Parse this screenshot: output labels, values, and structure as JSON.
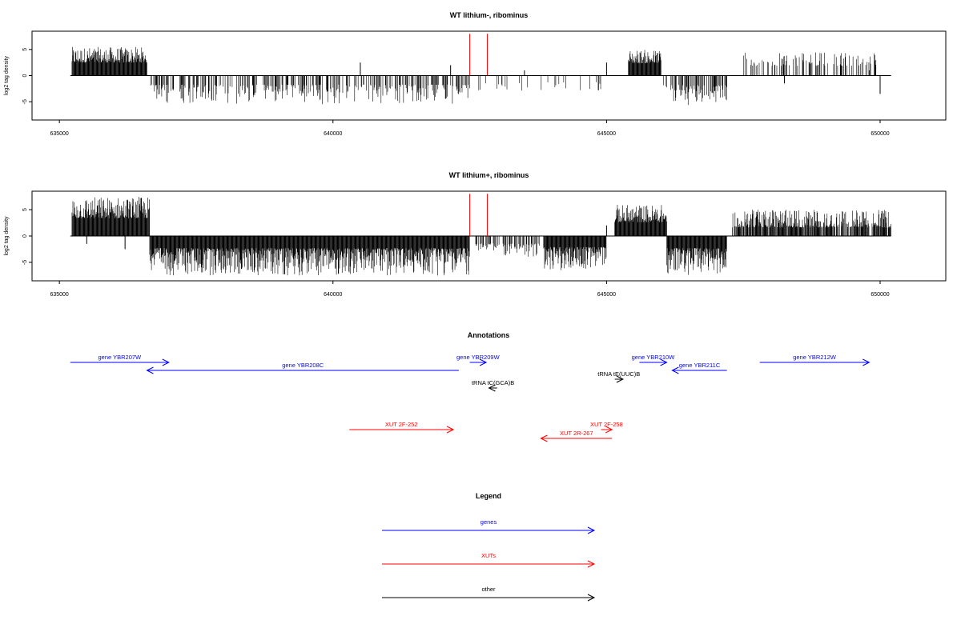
{
  "chart_data": [
    {
      "type": "bar",
      "title": "WT lithium-, ribominus",
      "xlabel": "",
      "ylabel": "log2 tag density",
      "xlim": [
        634500,
        651200
      ],
      "ylim": [
        -8.5,
        8.5
      ],
      "xticks": [
        "635000",
        "640000",
        "645000",
        "650000"
      ],
      "yticks": [
        "5",
        "0",
        "-5"
      ],
      "baseline": [
        635200,
        650200
      ],
      "series": [
        {
          "color": "#000000",
          "segments": [
            {
              "from": 635230,
              "to": 636600,
              "min": 1.5,
              "max": 5.5
            },
            {
              "from": 636620,
              "to": 642500,
              "min": -5.5,
              "max": -0.8,
              "density": 0.38
            },
            {
              "from": 642600,
              "to": 643500,
              "min": -4.0,
              "max": -0.8,
              "density": 0.15
            },
            {
              "from": 643500,
              "to": 644900,
              "min": -3.0,
              "max": -0.8,
              "density": 0.06
            },
            {
              "from": 645400,
              "to": 646000,
              "min": 1.5,
              "max": 5.0
            },
            {
              "from": 646000,
              "to": 647200,
              "min": -5.8,
              "max": -0.8,
              "density": 0.45
            },
            {
              "from": 647500,
              "to": 650000,
              "min": 1.0,
              "max": 4.5,
              "density": 0.3
            }
          ],
          "spikes": [
            [
              640500,
              2.5
            ],
            [
              642150,
              2.0
            ],
            [
              643500,
              1.0
            ],
            [
              644850,
              -2.8
            ],
            [
              645000,
              2.5
            ],
            [
              648250,
              -1.5
            ],
            [
              649800,
              1.0
            ],
            [
              650000,
              -3.5
            ]
          ]
        },
        {
          "color": "#ff0000",
          "spikes": [
            [
              642500,
              8.0
            ],
            [
              642820,
              8.0
            ]
          ]
        }
      ]
    },
    {
      "type": "bar",
      "title": "WT lithium+, ribominus",
      "xlabel": "",
      "ylabel": "log2 tag density",
      "xlim": [
        634500,
        651200
      ],
      "ylim": [
        -8.5,
        8.5
      ],
      "xticks": [
        "635000",
        "640000",
        "645000",
        "650000"
      ],
      "yticks": [
        "5",
        "0",
        "-5"
      ],
      "baseline": [
        635200,
        650200
      ],
      "series": [
        {
          "color": "#000000",
          "segments": [
            {
              "from": 635230,
              "to": 636650,
              "min": 2.0,
              "max": 7.5
            },
            {
              "from": 636650,
              "to": 642500,
              "min": -7.5,
              "max": -1.0,
              "density": 1.0
            },
            {
              "from": 642600,
              "to": 643800,
              "min": -4.0,
              "max": -0.8,
              "density": 0.4
            },
            {
              "from": 643850,
              "to": 645000,
              "min": -6.5,
              "max": -1.0,
              "density": 1.0
            },
            {
              "from": 645150,
              "to": 646100,
              "min": 1.5,
              "max": 6.0,
              "density": 1.0
            },
            {
              "from": 646100,
              "to": 647200,
              "min": -7.5,
              "max": -1.0,
              "density": 1.0
            },
            {
              "from": 647300,
              "to": 650200,
              "min": 0.5,
              "max": 5.0,
              "density": 0.8
            }
          ],
          "spikes": [
            [
              635500,
              -1.5
            ],
            [
              636200,
              -2.5
            ],
            [
              645000,
              2.0
            ]
          ]
        },
        {
          "color": "#ff0000",
          "spikes": [
            [
              642500,
              8.0
            ],
            [
              642820,
              8.0
            ]
          ]
        }
      ]
    }
  ],
  "annotations": {
    "title": "Annotations",
    "colors": {
      "gene": "#0000ff",
      "xut": "#ff0000",
      "other": "#000000"
    },
    "features": [
      {
        "label": "gene YBR207W",
        "kind": "gene",
        "row": 0,
        "start": 635200,
        "end": 637000
      },
      {
        "label": "gene YBR208C",
        "kind": "gene",
        "row": 1,
        "start": 642300,
        "end": 636600
      },
      {
        "label": "gene YBR209W",
        "kind": "gene",
        "row": 0,
        "start": 642500,
        "end": 642800
      },
      {
        "label": "gene YBR210W",
        "kind": "gene",
        "row": 0,
        "start": 645600,
        "end": 646100
      },
      {
        "label": "gene YBR211C",
        "kind": "gene",
        "row": 1,
        "start": 647200,
        "end": 646200
      },
      {
        "label": "gene YBR212W",
        "kind": "gene",
        "row": 0,
        "start": 647800,
        "end": 649800
      },
      {
        "label": "tRNA tE(UUC)B",
        "kind": "other",
        "row": 2,
        "start": 645150,
        "end": 645300
      },
      {
        "label": "tRNA tC(GCA)B",
        "kind": "other",
        "row": 3,
        "start": 643000,
        "end": 642850
      },
      {
        "label": "XUT 2F-252",
        "kind": "xut",
        "row": 4,
        "start": 640300,
        "end": 642200
      },
      {
        "label": "XUT 2F-258",
        "kind": "xut",
        "row": 4,
        "start": 644900,
        "end": 645100
      },
      {
        "label": "XUT 2R-267",
        "kind": "xut",
        "row": 5,
        "start": 645100,
        "end": 643800
      }
    ]
  },
  "legend": {
    "title": "Legend",
    "items": [
      {
        "label": "genes",
        "color": "#0000ff"
      },
      {
        "label": "XUTs",
        "color": "#ff0000"
      },
      {
        "label": "other",
        "color": "#000000"
      }
    ]
  }
}
